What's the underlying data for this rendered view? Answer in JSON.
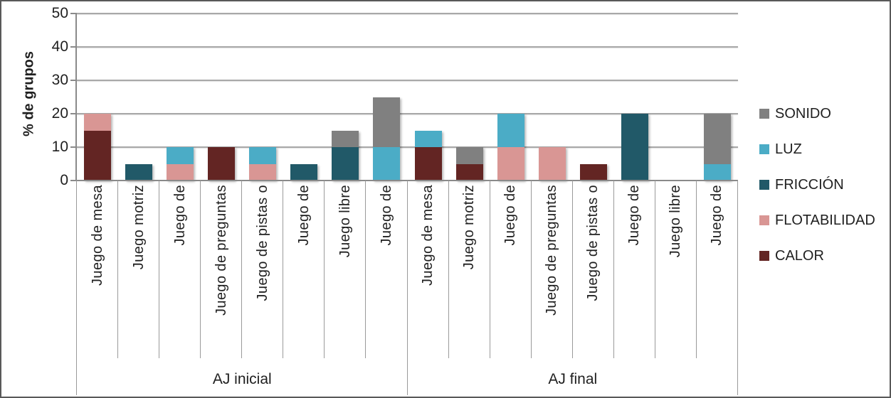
{
  "figure": {
    "background": "#ffffff",
    "border_color": "#595959",
    "gridline_color": "#a8a8a8",
    "axis_color": "#8a8a8a"
  },
  "chart_data": {
    "type": "bar",
    "stacked": true,
    "title": "",
    "xlabel": "",
    "ylabel": "% de grupos",
    "ylim": [
      0,
      50
    ],
    "yticks": [
      0,
      10,
      20,
      30,
      40,
      50
    ],
    "grid": "horizontal",
    "legend_position": "right",
    "groups": [
      {
        "label": "AJ inicial",
        "categories": [
          "Juego de mesa",
          "Juego motriz",
          "Juego de",
          "Juego de preguntas",
          "Juego de pistas o",
          "Juego de",
          "Juego libre",
          "Juego de"
        ]
      },
      {
        "label": "AJ final",
        "categories": [
          "Juego de mesa",
          "Juego motriz",
          "Juego de",
          "Juego de preguntas",
          "Juego de pistas o",
          "Juego de",
          "Juego libre",
          "Juego de"
        ]
      }
    ],
    "series": [
      {
        "name": "CALOR",
        "color": "#632523",
        "values": [
          15,
          0,
          0,
          10,
          0,
          0,
          0,
          0,
          10,
          5,
          0,
          0,
          5,
          0,
          0,
          0
        ]
      },
      {
        "name": "FLOTABILIDAD",
        "color": "#D99694",
        "values": [
          5,
          0,
          5,
          0,
          5,
          0,
          0,
          0,
          0,
          0,
          10,
          10,
          0,
          0,
          0,
          0
        ]
      },
      {
        "name": "FRICCIÓN",
        "color": "#215968",
        "values": [
          0,
          5,
          0,
          0,
          0,
          5,
          10,
          0,
          0,
          0,
          0,
          0,
          0,
          20,
          0,
          0
        ]
      },
      {
        "name": "LUZ",
        "color": "#4BACC6",
        "values": [
          0,
          0,
          5,
          0,
          5,
          0,
          0,
          10,
          5,
          0,
          10,
          0,
          0,
          0,
          0,
          5
        ]
      },
      {
        "name": "SONIDO",
        "color": "#808080",
        "values": [
          0,
          0,
          0,
          0,
          0,
          0,
          5,
          15,
          0,
          5,
          0,
          0,
          0,
          0,
          0,
          15
        ]
      }
    ],
    "legend": [
      {
        "label": "SONIDO",
        "color": "#808080"
      },
      {
        "label": "LUZ",
        "color": "#4BACC6"
      },
      {
        "label": "FRICCIÓN",
        "color": "#215968"
      },
      {
        "label": "FLOTABILIDAD",
        "color": "#D99694"
      },
      {
        "label": "CALOR",
        "color": "#632523"
      }
    ]
  }
}
